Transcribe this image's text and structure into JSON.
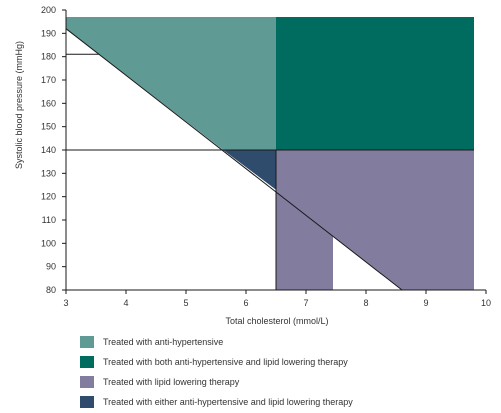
{
  "chart_data": {
    "type": "area",
    "xlabel": "Total cholesterol (mmol/L)",
    "ylabel": "Systolic blood pressure (mmHg)",
    "xlim": [
      3,
      10
    ],
    "ylim": [
      80,
      200
    ],
    "x_ticks": [
      3,
      4,
      5,
      6,
      7,
      8,
      9,
      10
    ],
    "y_ticks": [
      80,
      90,
      100,
      110,
      120,
      130,
      140,
      150,
      160,
      170,
      180,
      190,
      200
    ],
    "regions": [
      {
        "name": "Treated with anti-hypertensive",
        "color": "#5f9b94",
        "points": [
          [
            3,
            197
          ],
          [
            6.5,
            197
          ],
          [
            6.5,
            140
          ],
          [
            5.62,
            140
          ],
          [
            3,
            192
          ]
        ]
      },
      {
        "name": "Treated with both anti-hypertensive and lipid lowering therapy",
        "color": "#006b5f",
        "points": [
          [
            6.5,
            197
          ],
          [
            9.8,
            197
          ],
          [
            9.8,
            140
          ],
          [
            6.5,
            140
          ]
        ]
      },
      {
        "name": "Treated with lipid lowering therapy",
        "color": "#827d9e",
        "points": [
          [
            6.5,
            140
          ],
          [
            9.8,
            140
          ],
          [
            9.8,
            80
          ],
          [
            8.6,
            80
          ],
          [
            7.45,
            103
          ],
          [
            7.45,
            80
          ],
          [
            6.5,
            80
          ],
          [
            6.5,
            123
          ]
        ]
      },
      {
        "name": "Treated with either anti-hypertensive and lipid lowering therapy",
        "color": "#2f4c6c",
        "points": [
          [
            5.62,
            140
          ],
          [
            6.5,
            140
          ],
          [
            6.5,
            123
          ]
        ]
      }
    ],
    "reference_lines": [
      {
        "points": [
          [
            3,
            192
          ],
          [
            8.6,
            80
          ]
        ]
      },
      {
        "points": [
          [
            3,
            181
          ],
          [
            3.55,
            181
          ]
        ]
      },
      {
        "points": [
          [
            3,
            140
          ],
          [
            9.8,
            140
          ]
        ]
      },
      {
        "points": [
          [
            6.5,
            140
          ],
          [
            6.5,
            80
          ]
        ]
      }
    ],
    "grid": false,
    "legend_position": "bottom-left"
  }
}
